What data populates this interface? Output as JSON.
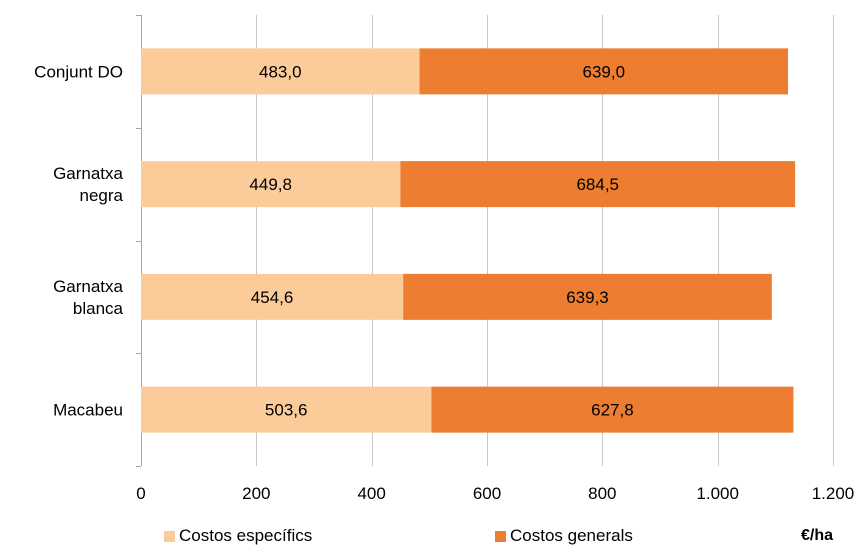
{
  "chart_data": {
    "type": "bar",
    "orientation": "horizontal",
    "stacked": true,
    "categories": [
      [
        "Conjunt DO"
      ],
      [
        "Garnatxa",
        "negra"
      ],
      [
        "Garnatxa",
        "blanca"
      ],
      [
        "Macabeu"
      ]
    ],
    "series": [
      {
        "name": "Costos específics",
        "color": "#fccb9a",
        "values": [
          483.0,
          449.8,
          454.6,
          503.6
        ],
        "labels": [
          "483,0",
          "449,8",
          "454,6",
          "503,6"
        ]
      },
      {
        "name": "Costos generals",
        "color": "#ed7d31",
        "values": [
          639.0,
          684.5,
          639.3,
          627.8
        ],
        "labels": [
          "639,0",
          "684,5",
          "639,3",
          "627,8"
        ]
      }
    ],
    "xlim": [
      0,
      1200
    ],
    "xticks": [
      0,
      200,
      400,
      600,
      800,
      1000,
      1200
    ],
    "xtick_labels": [
      "0",
      "200",
      "400",
      "600",
      "800",
      "1.000",
      "1.200"
    ],
    "xlabel": "€/ha",
    "grid": "vertical",
    "legend_position": "bottom"
  }
}
